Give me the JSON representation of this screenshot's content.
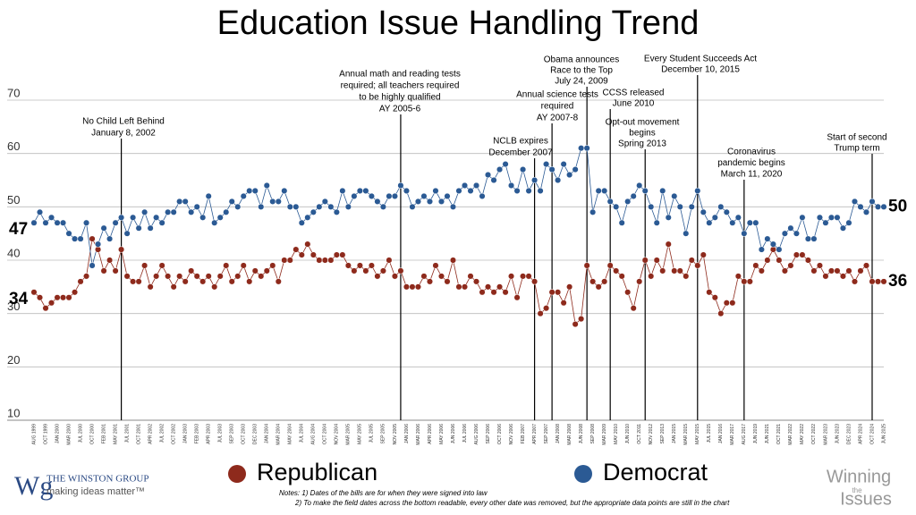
{
  "chart_data": {
    "type": "line",
    "title": "Education Issue Handling Trend",
    "categories": [
      "AUG 1999",
      null,
      "OCT 1999",
      null,
      "JAN 2000",
      null,
      "MAR 2000",
      null,
      "JUL 2000",
      null,
      "OCT 2000",
      null,
      "FEB 2001",
      null,
      "MAY 2001",
      null,
      "JUL 2001",
      null,
      "OCT 2001",
      null,
      "APR 2002",
      null,
      "JUL 2002",
      null,
      "OCT 2002",
      null,
      "JAN 2003",
      null,
      "FEB 2003",
      null,
      "APR 2003",
      null,
      "JUL 2003",
      null,
      "SEP 2003",
      null,
      "OCT 2003",
      null,
      "DEC 2003",
      null,
      "JAN 2004",
      null,
      "MAR 2004",
      null,
      "MAY 2004",
      null,
      "JUL 2004",
      null,
      "AUG 2004",
      null,
      "OCT 2004",
      null,
      "NOV 2004",
      null,
      "MAR 2005",
      null,
      "MAY 2005",
      null,
      "JUL 2005",
      null,
      "SEP 2005",
      null,
      "NOV 2005",
      null,
      "JAN 2006",
      null,
      "MAR 2006",
      null,
      "APR 2006",
      null,
      "MAY 2006",
      null,
      "JUN 2006",
      null,
      "JUL 2006",
      null,
      "AUG 2006",
      null,
      "SEP 2006",
      null,
      "OCT 2006",
      null,
      "NOV 2006",
      null,
      "FEB 2007",
      null,
      "APR 2007",
      null,
      "SEP 2007",
      null,
      "JAN 2008",
      null,
      "MAR 2008",
      null,
      "JUN 2008",
      null,
      "SEP 2008",
      null,
      "MAR 2009",
      null,
      "MAY 2010",
      null,
      "JUN 2010",
      null,
      "OCT 2011",
      null,
      "NOV 2012",
      null,
      "SEP 2013",
      null,
      "JAN 2015",
      null,
      "MAR 2015",
      null,
      "MAY 2015",
      null,
      "JUL 2015",
      null,
      "JAN 2016",
      null,
      "MAR 2017",
      null,
      "AUG 2017",
      null,
      "JUN 2019",
      null,
      "JUN 2021",
      null,
      "OCT 2021",
      null,
      "MAR 2022",
      null,
      "MAY 2022",
      null,
      "OCT 2022",
      null,
      "MAR 2023",
      null,
      "JUN 2023",
      null,
      "DEC 2023",
      null,
      "APR 2024",
      null,
      "OCT 2024",
      null,
      "JUN 2025"
    ],
    "series": [
      {
        "name": "Republican",
        "color": "#8e2a1c",
        "values": [
          34,
          33,
          31,
          32,
          33,
          33,
          33,
          34,
          36,
          37,
          44,
          42,
          38,
          40,
          38,
          42,
          37,
          36,
          36,
          39,
          35,
          37,
          39,
          37,
          35,
          37,
          36,
          38,
          37,
          36,
          37,
          35,
          37,
          39,
          36,
          37,
          39,
          36,
          38,
          37,
          38,
          39,
          36,
          40,
          40,
          42,
          41,
          43,
          41,
          40,
          40,
          40,
          41,
          41,
          39,
          38,
          39,
          38,
          39,
          37,
          38,
          40,
          37,
          38,
          35,
          35,
          35,
          37,
          36,
          39,
          37,
          36,
          40,
          35,
          35,
          37,
          36,
          34,
          35,
          34,
          35,
          34,
          37,
          33,
          37,
          37,
          36,
          30,
          31,
          34,
          34,
          32,
          35,
          28,
          29,
          39,
          36,
          35,
          36,
          39,
          38,
          37,
          34,
          31,
          36,
          40,
          37,
          40,
          38,
          43,
          38,
          38,
          37,
          40,
          39,
          41,
          34,
          33,
          30,
          32,
          32,
          37,
          36,
          36,
          39,
          38,
          40,
          42,
          40,
          38,
          39,
          41,
          41,
          40,
          38,
          39,
          37,
          38,
          38,
          37,
          38,
          36,
          38,
          39,
          36,
          36,
          36
        ]
      },
      {
        "name": "Democrat",
        "color": "#2b5a94",
        "values": [
          47,
          49,
          47,
          48,
          47,
          47,
          45,
          44,
          44,
          47,
          39,
          43,
          46,
          44,
          47,
          48,
          45,
          48,
          46,
          49,
          46,
          48,
          47,
          49,
          49,
          51,
          51,
          49,
          50,
          48,
          52,
          47,
          48,
          49,
          51,
          50,
          52,
          53,
          53,
          50,
          54,
          51,
          51,
          53,
          50,
          50,
          47,
          48,
          49,
          50,
          51,
          50,
          49,
          53,
          50,
          52,
          53,
          53,
          52,
          51,
          50,
          52,
          52,
          54,
          53,
          50,
          51,
          52,
          51,
          53,
          51,
          52,
          50,
          53,
          54,
          53,
          54,
          52,
          56,
          55,
          57,
          58,
          54,
          53,
          57,
          53,
          55,
          53,
          58,
          57,
          55,
          58,
          56,
          57,
          61,
          61,
          49,
          53,
          53,
          51,
          50,
          47,
          51,
          52,
          54,
          53,
          50,
          47,
          53,
          48,
          52,
          50,
          45,
          50,
          53,
          49,
          47,
          48,
          50,
          49,
          47,
          48,
          45,
          47,
          47,
          42,
          44,
          43,
          42,
          45,
          46,
          45,
          48,
          44,
          44,
          48,
          47,
          48,
          48,
          46,
          47,
          51,
          50,
          49,
          51,
          50,
          50
        ]
      }
    ],
    "ylim": [
      10,
      70
    ],
    "yticks": [
      10,
      20,
      30,
      40,
      50,
      60,
      70
    ],
    "grid": true,
    "annotations": [
      {
        "lines": [
          "No Child Left Behind",
          "January 8, 2002"
        ]
      },
      {
        "lines": [
          "Annual math and reading tests",
          "required; all teachers required",
          "to be highly qualified",
          "AY 2005-6"
        ]
      },
      {
        "lines": [
          "NCLB expires",
          "December 2007"
        ]
      },
      {
        "lines": [
          "Annual science tests",
          "required",
          "AY 2007-8"
        ]
      },
      {
        "lines": [
          "Obama announces",
          "Race to the Top",
          "July 24, 2009"
        ]
      },
      {
        "lines": [
          "CCSS released",
          "June 2010"
        ]
      },
      {
        "lines": [
          "Opt-out movement",
          "begins",
          "Spring 2013"
        ]
      },
      {
        "lines": [
          "Every Student Succeeds Act",
          "December 10, 2015"
        ]
      },
      {
        "lines": [
          "Coronavirus",
          "pandemic begins",
          "March 11, 2020"
        ]
      },
      {
        "lines": [
          "Start of second",
          "Trump term"
        ]
      }
    ],
    "notes": [
      "Notes: 1) Dates of the bills are for when they were signed into law",
      "2) To make the field dates across the bottom readable, every other date was removed, but the appropriate data points are still in the chart"
    ]
  },
  "branding": {
    "left_mark": "Wg",
    "left_name": "THE WINSTON GROUP",
    "left_tagline": "making ideas matter™",
    "right": [
      "Winning",
      "the",
      "Issues"
    ]
  }
}
